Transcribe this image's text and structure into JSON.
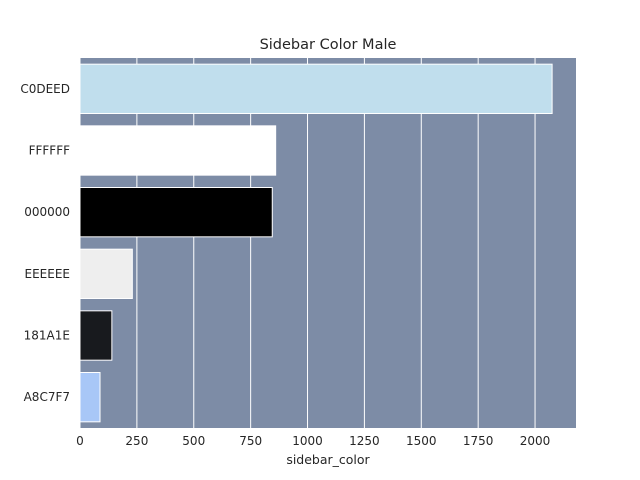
{
  "chart_data": {
    "type": "bar",
    "orientation": "horizontal",
    "title": "Sidebar Color Male",
    "xlabel": "sidebar_color",
    "ylabel": "",
    "categories": [
      "C0DEED",
      "FFFFFF",
      "000000",
      "EEEEEE",
      "181A1E",
      "A8C7F7"
    ],
    "values": [
      2075,
      860,
      845,
      230,
      140,
      88
    ],
    "bar_colors": [
      "#C0DEED",
      "#FFFFFF",
      "#000000",
      "#EEEEEE",
      "#181A1E",
      "#A8C7F7"
    ],
    "xlim": [
      0,
      2180
    ],
    "xticks": [
      0,
      250,
      500,
      750,
      1000,
      1250,
      1500,
      1750,
      2000
    ],
    "grid": true,
    "plot_background": "#7D8CA6",
    "grid_color": "#FFFFFF"
  }
}
